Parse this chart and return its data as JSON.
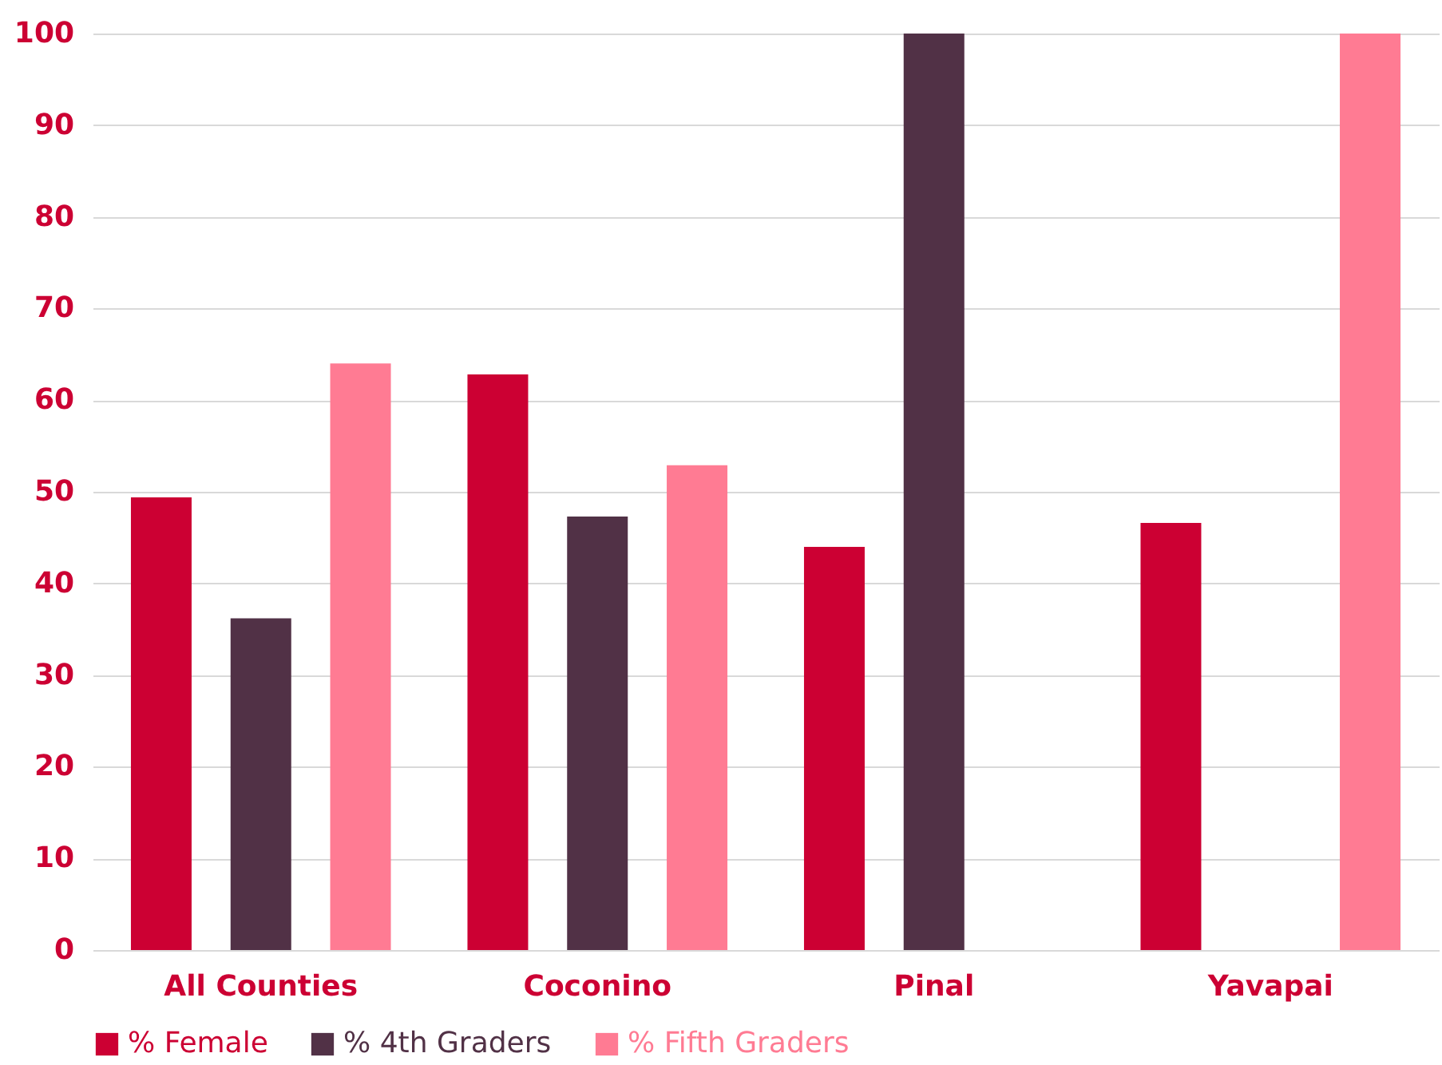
{
  "chart_data": {
    "type": "bar",
    "categories": [
      "All Counties",
      "Coconino",
      "Pinal",
      "Yavapai"
    ],
    "series": [
      {
        "name": "% Female",
        "color": "#cc0033",
        "values": [
          49.4,
          62.8,
          44.0,
          46.6
        ]
      },
      {
        "name": "% 4th Graders",
        "color": "#513146",
        "values": [
          36.2,
          47.3,
          100,
          0
        ]
      },
      {
        "name": "% Fifth Graders",
        "color": "#ff7b93",
        "values": [
          64.0,
          52.9,
          0,
          100
        ]
      }
    ],
    "ylim": [
      0,
      100
    ],
    "yticks": [
      0,
      10,
      20,
      30,
      40,
      50,
      60,
      70,
      80,
      90,
      100
    ],
    "grid": "y",
    "legend": "bottom"
  }
}
